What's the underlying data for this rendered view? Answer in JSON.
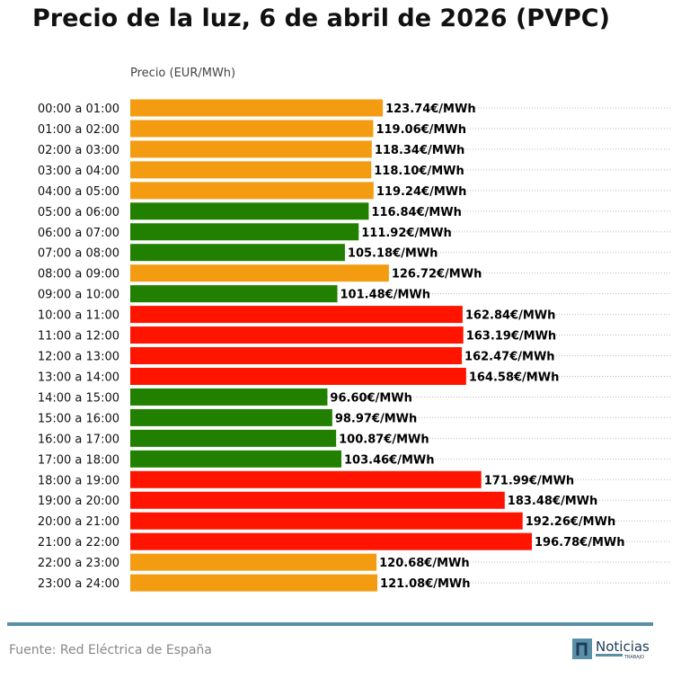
{
  "title": "Precio de la luz, 6 de abril de 2026 (PVPC)",
  "source": "Fuente: Red Eléctrica de España",
  "logo_text": "Noticias TRABAJO",
  "colors": {
    "orange": "#f39c12",
    "green": "#218000",
    "red": "#ff1400",
    "rule": "#5b8fa8"
  },
  "chart_data": {
    "type": "bar",
    "orientation": "horizontal",
    "title": "Precio de la luz, 6 de abril de 2026 (PVPC)",
    "xlabel": "Precio (EUR/MWh)",
    "grid": "dotted horizontal",
    "categories": [
      "00:00 a 01:00",
      "01:00 a 02:00",
      "02:00 a 03:00",
      "03:00 a 04:00",
      "04:00 a 05:00",
      "05:00 a 06:00",
      "06:00 a 07:00",
      "07:00 a 08:00",
      "08:00 a 09:00",
      "09:00 a 10:00",
      "10:00 a 11:00",
      "11:00 a 12:00",
      "12:00 a 13:00",
      "13:00 a 14:00",
      "14:00 a 15:00",
      "15:00 a 16:00",
      "16:00 a 17:00",
      "17:00 a 18:00",
      "18:00 a 19:00",
      "19:00 a 20:00",
      "20:00 a 21:00",
      "21:00 a 22:00",
      "22:00 a 23:00",
      "23:00 a 24:00"
    ],
    "values": [
      123.74,
      119.06,
      118.34,
      118.1,
      119.24,
      116.84,
      111.92,
      105.18,
      126.72,
      101.48,
      162.84,
      163.19,
      162.47,
      164.58,
      96.6,
      98.97,
      100.87,
      103.46,
      171.99,
      183.48,
      192.26,
      196.78,
      120.68,
      121.08
    ],
    "labels": [
      "123.74€/MWh",
      "119.06€/MWh",
      "118.34€/MWh",
      "118.10€/MWh",
      "119.24€/MWh",
      "116.84€/MWh",
      "111.92€/MWh",
      "105.18€/MWh",
      "126.72€/MWh",
      "101.48€/MWh",
      "162.84€/MWh",
      "163.19€/MWh",
      "162.47€/MWh",
      "164.58€/MWh",
      "96.60€/MWh",
      "98.97€/MWh",
      "100.87€/MWh",
      "103.46€/MWh",
      "171.99€/MWh",
      "183.48€/MWh",
      "192.26€/MWh",
      "196.78€/MWh",
      "120.68€/MWh",
      "121.08€/MWh"
    ],
    "bar_colors": [
      "orange",
      "orange",
      "orange",
      "orange",
      "orange",
      "green",
      "green",
      "green",
      "orange",
      "green",
      "red",
      "red",
      "red",
      "red",
      "green",
      "green",
      "green",
      "green",
      "red",
      "red",
      "red",
      "red",
      "orange",
      "orange"
    ]
  }
}
